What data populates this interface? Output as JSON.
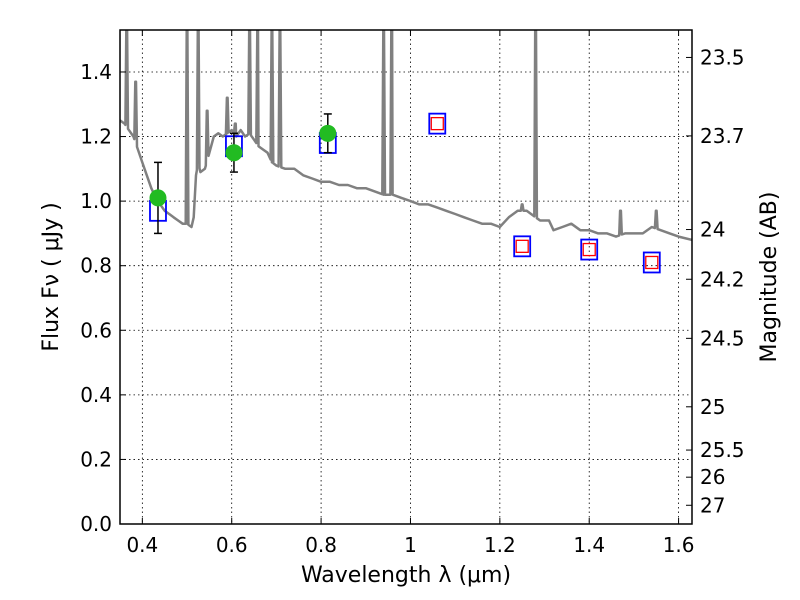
{
  "chart_data": {
    "type": "scatter",
    "title": "",
    "xlabel": "Wavelength  λ (μm)",
    "ylabel": "Flux  Fν  ( μJy )",
    "ylabel_right": "Magnitude (AB)",
    "xlim": [
      0.35,
      1.63
    ],
    "ylim": [
      0.0,
      1.53
    ],
    "grid": true,
    "x_ticks": [
      0.4,
      0.6,
      0.8,
      1.0,
      1.2,
      1.4,
      1.6
    ],
    "x_tick_labels": [
      "0.4",
      "0.6",
      "0.8",
      "1",
      "1.2",
      "1.4",
      "1.6"
    ],
    "y_ticks": [
      0.0,
      0.2,
      0.4,
      0.6,
      0.8,
      1.0,
      1.2,
      1.4
    ],
    "y_tick_labels": [
      "0.0",
      "0.2",
      "0.4",
      "0.6",
      "0.8",
      "1.0",
      "1.2",
      "1.4"
    ],
    "right_ticks": [
      {
        "label": "23.5",
        "flux": 1.445
      },
      {
        "label": "23.7",
        "flux": 1.202
      },
      {
        "label": "24",
        "flux": 0.912
      },
      {
        "label": "24.2",
        "flux": 0.758
      },
      {
        "label": "24.5",
        "flux": 0.575
      },
      {
        "label": "25",
        "flux": 0.363
      },
      {
        "label": "25.5",
        "flux": 0.229
      },
      {
        "label": "26",
        "flux": 0.145
      },
      {
        "label": "27",
        "flux": 0.058
      }
    ],
    "series": [
      {
        "name": "model spectrum",
        "kind": "line",
        "color": "#808080",
        "points": [
          [
            0.35,
            1.25
          ],
          [
            0.36,
            1.24
          ],
          [
            0.37,
            1.22
          ],
          [
            0.38,
            1.2
          ],
          [
            0.39,
            1.16
          ],
          [
            0.4,
            1.12
          ],
          [
            0.41,
            1.08
          ],
          [
            0.42,
            1.04
          ],
          [
            0.43,
            1.01
          ],
          [
            0.44,
            0.99
          ],
          [
            0.45,
            0.97
          ],
          [
            0.46,
            0.96
          ],
          [
            0.47,
            0.95
          ],
          [
            0.48,
            0.94
          ],
          [
            0.49,
            0.93
          ],
          [
            0.5,
            0.93
          ],
          [
            0.51,
            0.92
          ],
          [
            0.515,
            0.95
          ],
          [
            0.52,
            1.08
          ],
          [
            0.525,
            1.12
          ],
          [
            0.53,
            1.09
          ],
          [
            0.54,
            1.1
          ],
          [
            0.55,
            1.15
          ],
          [
            0.56,
            1.2
          ],
          [
            0.57,
            1.21
          ],
          [
            0.58,
            1.2
          ],
          [
            0.59,
            1.21
          ],
          [
            0.6,
            1.22
          ],
          [
            0.61,
            1.2
          ],
          [
            0.62,
            1.22
          ],
          [
            0.63,
            1.2
          ],
          [
            0.64,
            1.21
          ],
          [
            0.65,
            1.19
          ],
          [
            0.66,
            1.17
          ],
          [
            0.67,
            1.16
          ],
          [
            0.68,
            1.15
          ],
          [
            0.69,
            1.12
          ],
          [
            0.7,
            1.11
          ],
          [
            0.72,
            1.1
          ],
          [
            0.74,
            1.1
          ],
          [
            0.76,
            1.08
          ],
          [
            0.78,
            1.07
          ],
          [
            0.8,
            1.06
          ],
          [
            0.82,
            1.06
          ],
          [
            0.84,
            1.05
          ],
          [
            0.86,
            1.05
          ],
          [
            0.88,
            1.04
          ],
          [
            0.9,
            1.04
          ],
          [
            0.92,
            1.03
          ],
          [
            0.94,
            1.02
          ],
          [
            0.96,
            1.02
          ],
          [
            0.98,
            1.01
          ],
          [
            1.0,
            1.0
          ],
          [
            1.02,
            0.99
          ],
          [
            1.04,
            0.99
          ],
          [
            1.06,
            0.98
          ],
          [
            1.08,
            0.97
          ],
          [
            1.1,
            0.96
          ],
          [
            1.12,
            0.95
          ],
          [
            1.14,
            0.94
          ],
          [
            1.16,
            0.93
          ],
          [
            1.18,
            0.93
          ],
          [
            1.2,
            0.92
          ],
          [
            1.22,
            0.95
          ],
          [
            1.24,
            0.97
          ],
          [
            1.26,
            0.97
          ],
          [
            1.27,
            0.96
          ],
          [
            1.29,
            0.94
          ],
          [
            1.31,
            0.94
          ],
          [
            1.32,
            0.91
          ],
          [
            1.34,
            0.92
          ],
          [
            1.36,
            0.93
          ],
          [
            1.38,
            0.91
          ],
          [
            1.4,
            0.91
          ],
          [
            1.42,
            0.9
          ],
          [
            1.44,
            0.9
          ],
          [
            1.46,
            0.89
          ],
          [
            1.48,
            0.9
          ],
          [
            1.5,
            0.9
          ],
          [
            1.52,
            0.9
          ],
          [
            1.54,
            0.92
          ],
          [
            1.56,
            0.91
          ],
          [
            1.58,
            0.9
          ],
          [
            1.6,
            0.89
          ],
          [
            1.63,
            0.88
          ]
        ],
        "emission_lines": [
          {
            "x": 0.365,
            "peak": 1.53
          },
          {
            "x": 0.385,
            "peak": 1.37
          },
          {
            "x": 0.5,
            "peak": 1.53
          },
          {
            "x": 0.525,
            "peak": 1.53
          },
          {
            "x": 0.545,
            "peak": 1.28
          },
          {
            "x": 0.59,
            "peak": 1.32
          },
          {
            "x": 0.608,
            "peak": 1.24
          },
          {
            "x": 0.64,
            "peak": 1.53
          },
          {
            "x": 0.658,
            "peak": 1.53
          },
          {
            "x": 0.69,
            "peak": 1.53
          },
          {
            "x": 0.708,
            "peak": 1.53
          },
          {
            "x": 0.94,
            "peak": 1.53
          },
          {
            "x": 0.958,
            "peak": 1.53
          },
          {
            "x": 1.25,
            "peak": 0.99
          },
          {
            "x": 1.28,
            "peak": 1.53
          },
          {
            "x": 1.47,
            "peak": 0.97
          },
          {
            "x": 1.55,
            "peak": 0.97
          }
        ]
      },
      {
        "name": "observed photometry",
        "kind": "scatter",
        "color": "#22bb22",
        "x": [
          0.435,
          0.605,
          0.815
        ],
        "y": [
          1.01,
          1.15,
          1.21
        ],
        "err": [
          0.11,
          0.06,
          0.06
        ]
      },
      {
        "name": "model photometry",
        "kind": "square",
        "color": "#0000ff",
        "x": [
          0.435,
          0.605,
          0.815,
          1.06,
          1.25,
          1.4,
          1.54
        ],
        "y": [
          0.97,
          1.17,
          1.18,
          1.24,
          0.86,
          0.85,
          0.81
        ]
      },
      {
        "name": "measured photometry",
        "kind": "small-square",
        "color": "#ff0000",
        "x": [
          1.06,
          1.25,
          1.4,
          1.54
        ],
        "y": [
          1.24,
          0.86,
          0.85,
          0.81
        ]
      }
    ]
  }
}
